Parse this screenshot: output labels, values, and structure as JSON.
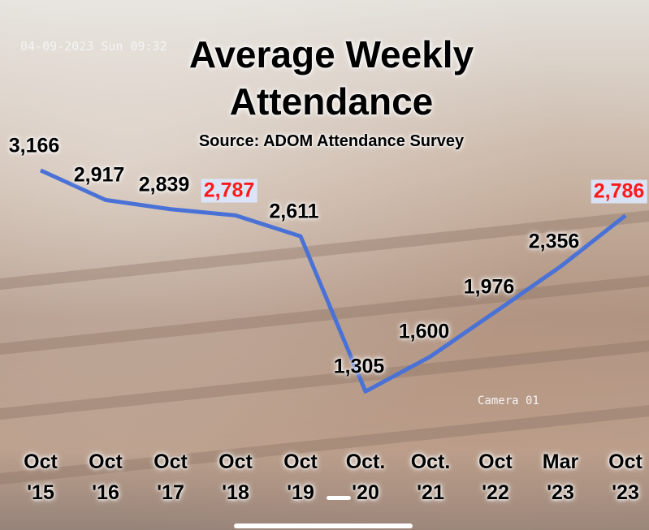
{
  "chart_data": {
    "type": "line",
    "title": "Average Weekly Attendance",
    "subtitle": "Source: ADOM Attendance Survey",
    "camera_timestamp": "04-09-2023 Sun 09:32",
    "camera_name": "Camera 01",
    "categories": [
      "Oct '15",
      "Oct '16",
      "Oct '17",
      "Oct '18",
      "Oct '19",
      "Oct. '20",
      "Oct. '21",
      "Oct '22",
      "Mar '23",
      "Oct '23"
    ],
    "values": [
      3166,
      2917,
      2839,
      2787,
      2611,
      1305,
      1600,
      1976,
      2356,
      2786
    ],
    "value_labels": [
      "3,166",
      "2,917",
      "2,839",
      "2,787",
      "2,611",
      "1,305",
      "1,600",
      "1,976",
      "2,356",
      "2,786"
    ],
    "value_label_colors": [
      "#000000",
      "#000000",
      "#000000",
      "#ff1a1a",
      "#000000",
      "#000000",
      "#000000",
      "#000000",
      "#000000",
      "#ff1a1a"
    ],
    "color": "#4a72d6",
    "ylim": [
      1000,
      3500
    ]
  }
}
